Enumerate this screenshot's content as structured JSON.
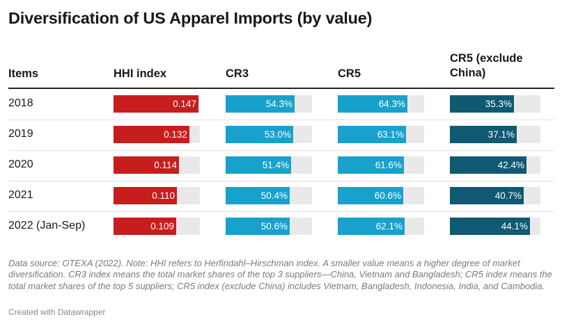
{
  "title": "Diversification of US Apparel Imports (by value)",
  "columns": {
    "items": "Items",
    "hhi": "HHI index",
    "cr3": "CR3",
    "cr5": "CR5",
    "cr5x": "CR5 (exclude China)"
  },
  "colors": {
    "hhi": "#c71e1d",
    "cr3": "#18a1cd",
    "cr5": "#18a1cd",
    "cr5x": "#0f5a72",
    "track": "#e9e9e9"
  },
  "chart_data": {
    "type": "table",
    "title": "Diversification of US Apparel Imports (by value)",
    "columns": [
      "Items",
      "HHI index",
      "CR3",
      "CR5",
      "CR5 (exclude China)"
    ],
    "bar_max": {
      "hhi": 0.15,
      "cr3": 68,
      "cr5": 80,
      "cr5x": 50
    },
    "rows": [
      {
        "item": "2018",
        "hhi": 0.147,
        "hhi_label": "0.147",
        "cr3": 54.3,
        "cr3_label": "54.3%",
        "cr5": 64.3,
        "cr5_label": "64.3%",
        "cr5x": 35.3,
        "cr5x_label": "35.3%"
      },
      {
        "item": "2019",
        "hhi": 0.132,
        "hhi_label": "0.132",
        "cr3": 53.0,
        "cr3_label": "53.0%",
        "cr5": 63.1,
        "cr5_label": "63.1%",
        "cr5x": 37.1,
        "cr5x_label": "37.1%"
      },
      {
        "item": "2020",
        "hhi": 0.114,
        "hhi_label": "0.114",
        "cr3": 51.4,
        "cr3_label": "51.4%",
        "cr5": 61.6,
        "cr5_label": "61.6%",
        "cr5x": 42.4,
        "cr5x_label": "42.4%"
      },
      {
        "item": "2021",
        "hhi": 0.11,
        "hhi_label": "0.110",
        "cr3": 50.4,
        "cr3_label": "50.4%",
        "cr5": 60.6,
        "cr5_label": "60.6%",
        "cr5x": 40.7,
        "cr5x_label": "40.7%"
      },
      {
        "item": "2022 (Jan-Sep)",
        "hhi": 0.109,
        "hhi_label": "0.109",
        "cr3": 50.6,
        "cr3_label": "50.6%",
        "cr5": 62.1,
        "cr5_label": "62.1%",
        "cr5x": 44.1,
        "cr5x_label": "44.1%"
      }
    ]
  },
  "note": "Data source: OTEXA (2022). Note: HHI refers to Herfindahl–Hirschman index. A smaller value means a higher degree of market diversification. CR3 index means the total market shares of the top 3 suppliers—China, Vietnam and Bangladesh; CR5 index means the total market shares of the top 5 suppliers; CR5 index (exclude China) includes Vietnam, Bangladesh, Indonesia, India, and Cambodia.",
  "credit": "Created with Datawrapper"
}
